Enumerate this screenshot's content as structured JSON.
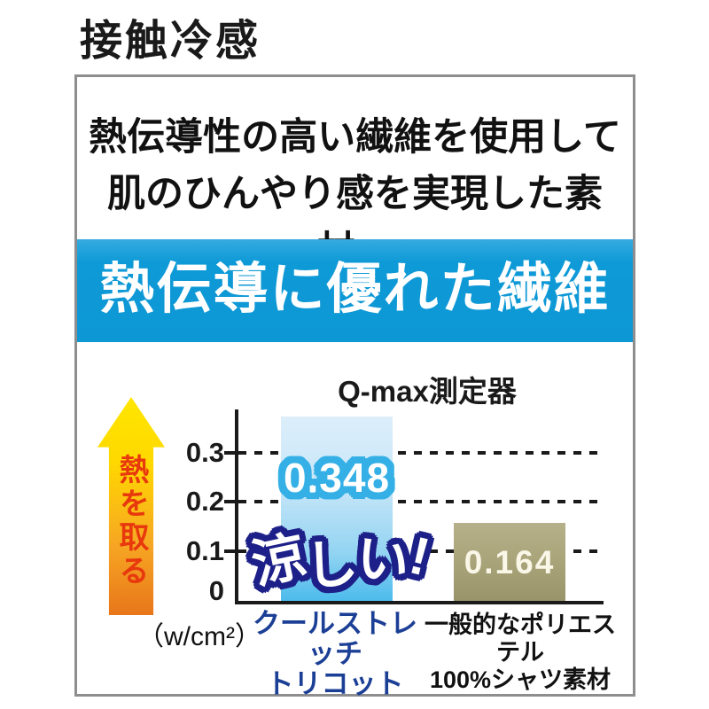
{
  "page": {
    "title": "接触冷感"
  },
  "panel": {
    "intro": {
      "line1": "熱伝導性の高い繊維を使用して",
      "line2": "肌のひんやり感を実現した素材。"
    },
    "banner_text": "熱伝導に優れた繊維"
  },
  "chart": {
    "title": "Q-max測定器",
    "arrow_label": "熱を取る",
    "unit": "（w/cm²）",
    "yticks": [
      "0.3",
      "0.2",
      "0.1",
      "0"
    ],
    "bars": [
      {
        "value_label": "0.348",
        "label_line1": "クールストレッチ",
        "label_line2": "トリコット"
      },
      {
        "value_label": "0.164",
        "label_line1": "一般的なポリエステル",
        "label_line2": "100%シャツ素材"
      }
    ],
    "annotation": {
      "c0": "涼",
      "c1": "し",
      "c2": "い",
      "c3": "!"
    }
  },
  "colors": {
    "banner_blue": "#0e9ad7",
    "bar1_bottom": "#4cbbec",
    "bar1_top": "#dceefa",
    "bar2_olive": "#a7a277",
    "badge_outline_cyan": "#35b0e6",
    "callout_outline_navy": "#1d2088",
    "arrow_yellow": "#ffe600",
    "arrow_orange": "#e8761a",
    "arrow_text_red": "#e8380d",
    "category1_blue": "#1c3f96",
    "box_border_gray": "#8e8e8e"
  },
  "chart_data": {
    "type": "bar",
    "title": "Q-max測定器",
    "categories": [
      "クールストレッチ トリコット",
      "一般的なポリエステル 100%シャツ素材"
    ],
    "values": [
      0.348,
      0.164
    ],
    "value_labels": [
      "0.348",
      "0.164"
    ],
    "xlabel": "",
    "ylabel": "熱を取る",
    "unit": "（w/cm²）",
    "yticks": [
      0,
      0.1,
      0.2,
      0.3
    ],
    "ylim": [
      0,
      0.38
    ],
    "grid": "horizontal dashed",
    "legend": "none",
    "annotations": [
      "涼しい!"
    ],
    "bar_colors": [
      "#4cbbec",
      "#a7a277"
    ]
  }
}
